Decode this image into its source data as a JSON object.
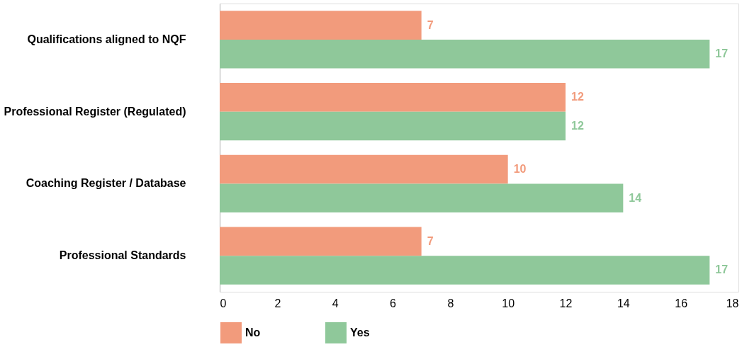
{
  "chart_data": {
    "type": "bar",
    "orientation": "horizontal",
    "categories": [
      "Qualifications aligned to NQF",
      "Professional Register (Regulated)",
      "Coaching Register / Database",
      "Professional Standards"
    ],
    "series": [
      {
        "name": "No",
        "color": "#f29b7c",
        "values": [
          7,
          12,
          10,
          7
        ]
      },
      {
        "name": "Yes",
        "color": "#8fc89a",
        "values": [
          17,
          12,
          14,
          17
        ]
      }
    ],
    "xlim": [
      0,
      18
    ],
    "xticks": [
      0,
      2,
      4,
      6,
      8,
      10,
      12,
      14,
      16,
      18
    ],
    "data_labels": true,
    "grid": false,
    "legend": "bottom"
  }
}
